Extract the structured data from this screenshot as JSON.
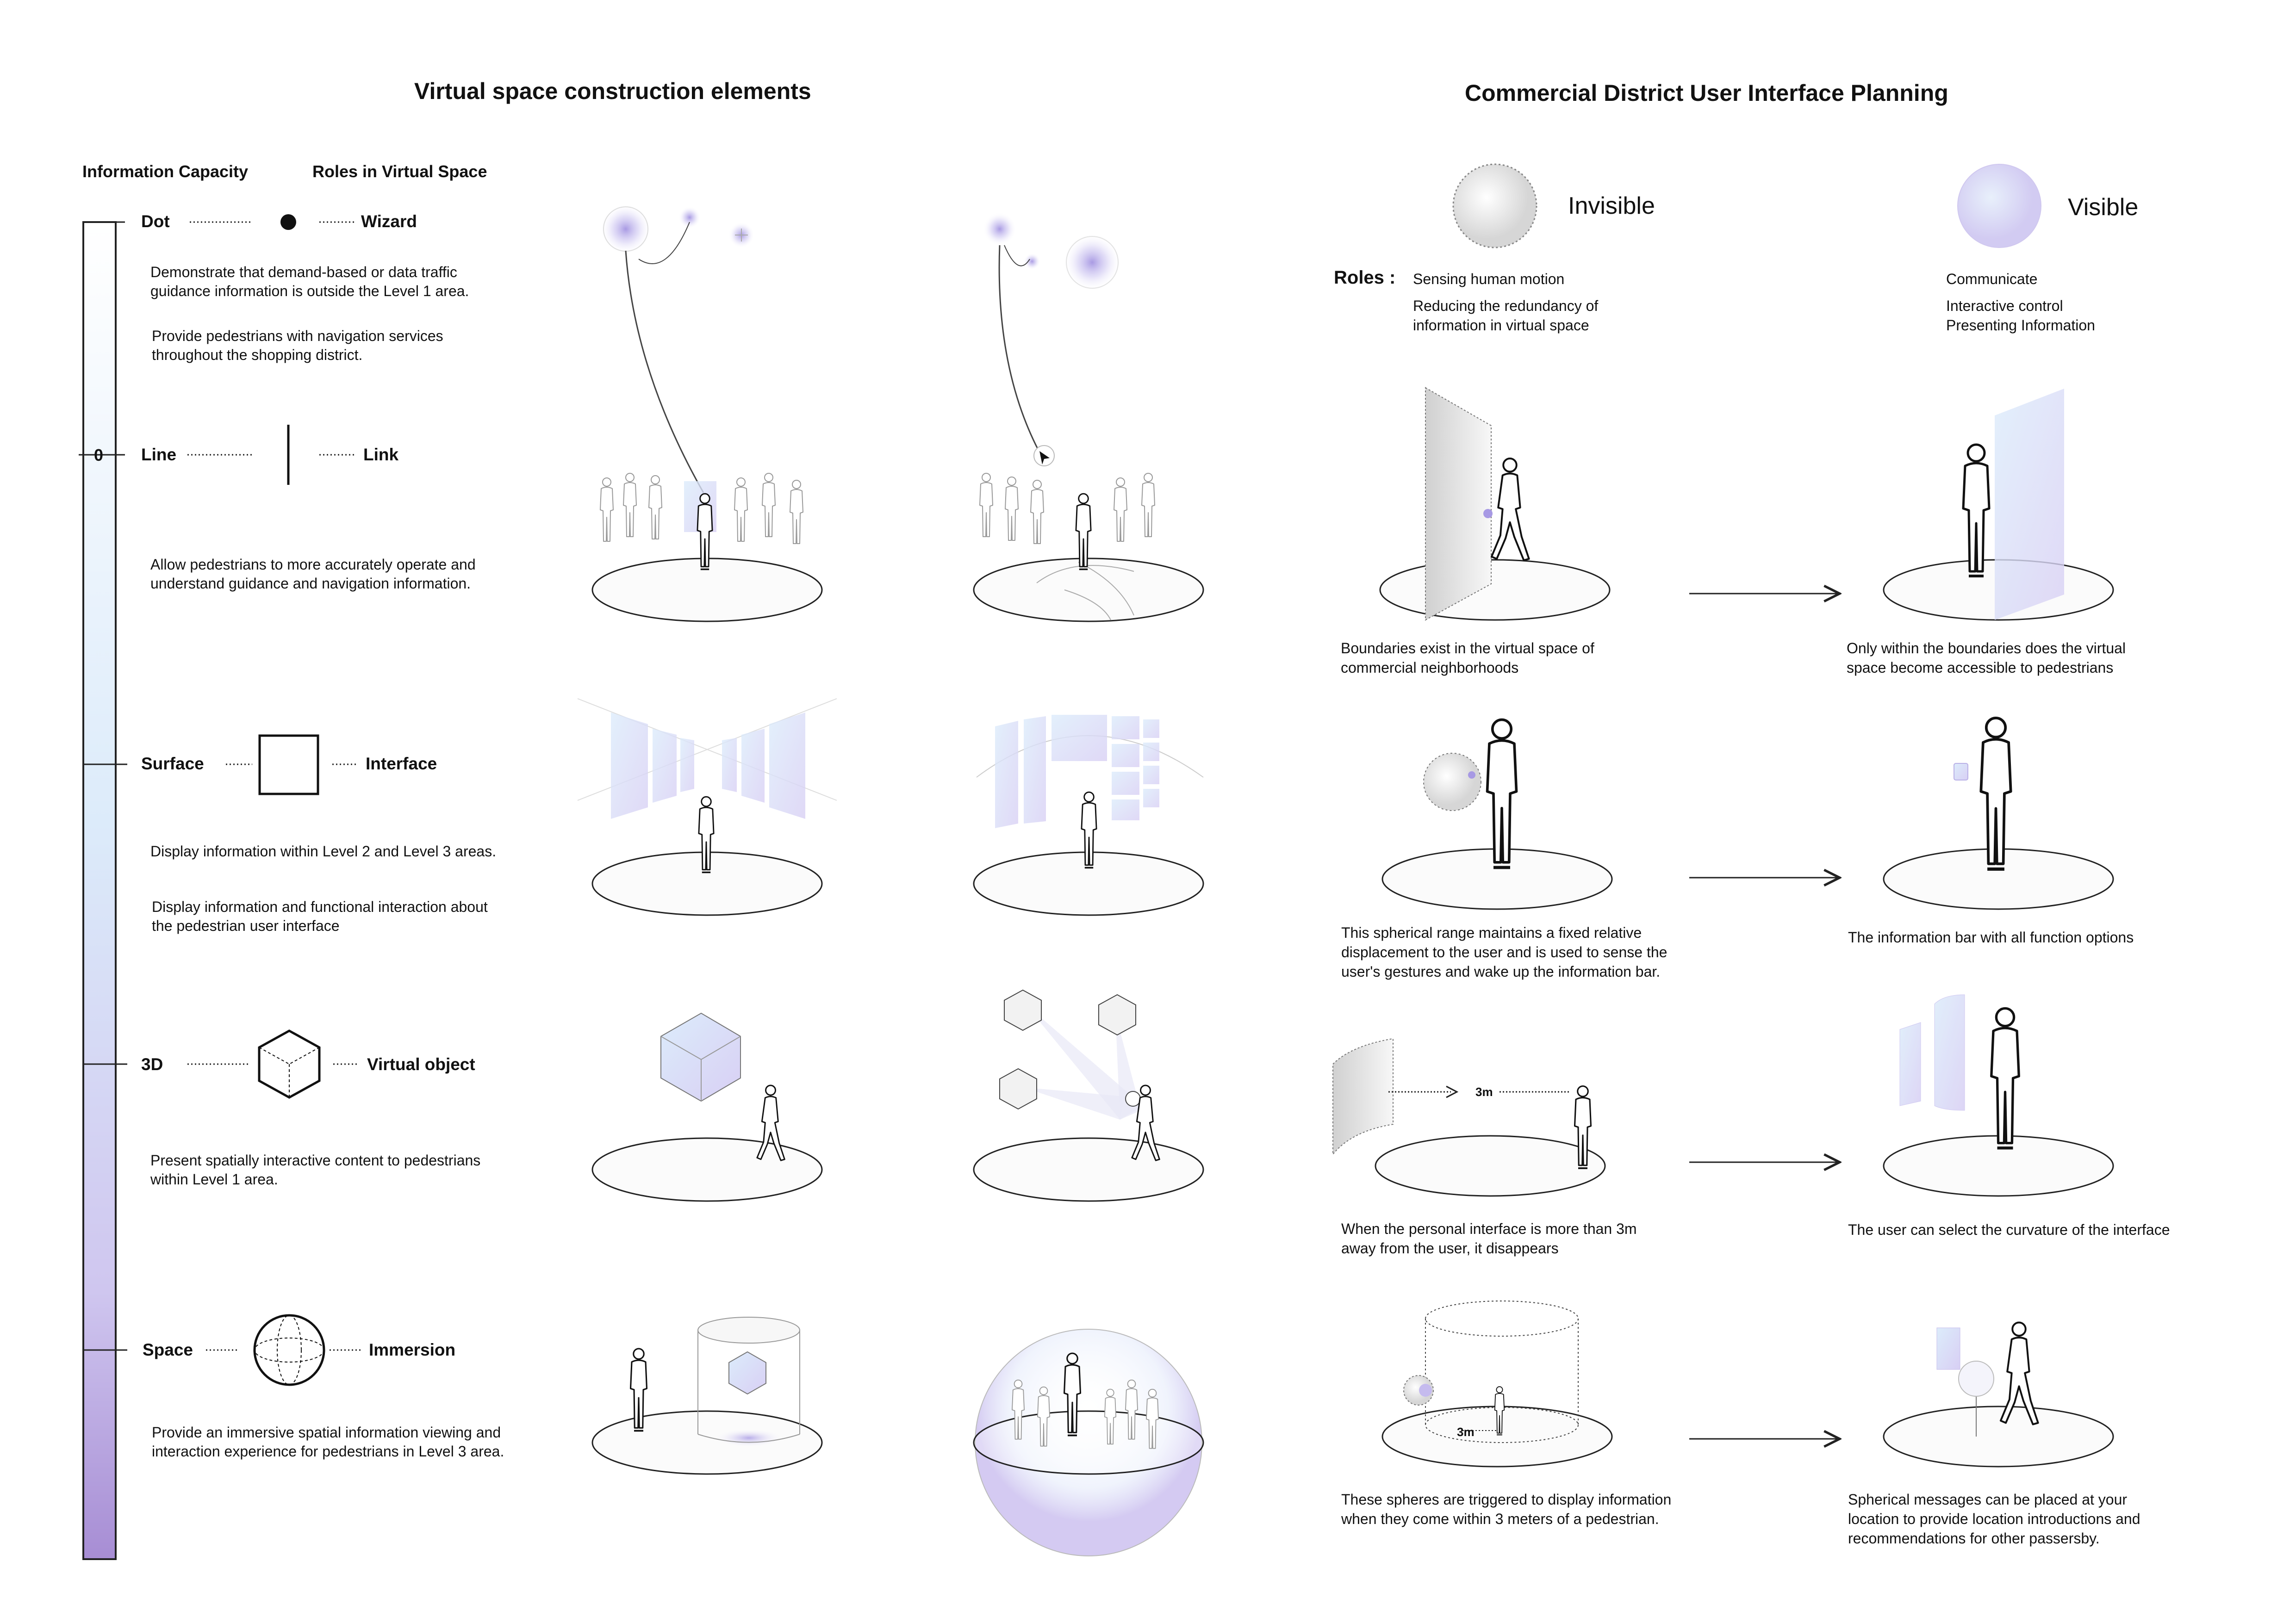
{
  "left": {
    "title": "Virtual space construction elements",
    "header_capacity": "Information Capacity",
    "header_roles": "Roles in Virtual Space",
    "scale_zero": "0",
    "elements": [
      {
        "label": "Dot",
        "role": "Wizard",
        "icon": "dot-icon"
      },
      {
        "label": "Line",
        "role": "Link",
        "icon": "line-icon"
      },
      {
        "label": "Surface",
        "role": "Interface",
        "icon": "square-icon"
      },
      {
        "label": "3D",
        "role": "Virtual object",
        "icon": "cube-icon"
      },
      {
        "label": "Space",
        "role": "Immersion",
        "icon": "sphere-icon"
      }
    ],
    "descriptions": [
      "Demonstrate that demand-based or data traffic\nguidance information is outside the Level 1 area.",
      "Provide pedestrians with navigation services\nthroughout the shopping district.",
      "Allow pedestrians to more accurately operate and\nunderstand guidance and navigation information.",
      "Display information within Level 2 and Level 3 areas.",
      "Display information and functional interaction about\nthe pedestrian user interface",
      "Present spatially interactive content to pedestrians\nwithin Level 1 area.",
      "Provide an immersive spatial information viewing and\ninteraction experience for pedestrians  in Level 3 area."
    ]
  },
  "right": {
    "title": "Commercial District User Interface Planning",
    "invisible_label": "Invisible",
    "visible_label": "Visible",
    "roles_label": "Roles",
    "invisible_roles": "Sensing human motion",
    "invisible_roles2": "Reducing the redundancy of\ninformation in virtual space",
    "visible_roles": "Communicate",
    "visible_roles2": "Interactive control\nPresenting Information",
    "distance_label_a": "3m",
    "distance_label_b": "3m",
    "captions_left": [
      "Boundaries exist in the virtual space of\ncommercial neighborhoods",
      "This spherical range maintains a fixed relative\ndisplacement to the user and is used to sense the\nuser's gestures and wake up the information bar.",
      "When the personal interface is more than 3m\naway from the user, it disappears",
      "These spheres are triggered to display information\nwhen they come within 3 meters of a pedestrian."
    ],
    "captions_right": [
      "Only within the boundaries does the virtual\nspace become accessible to pedestrians",
      "The information bar with all function options",
      "The user can select the curvature of the interface",
      "Spherical messages can be placed at your\nlocation to provide location introductions and\nrecommendations for other passersby."
    ]
  },
  "colors": {
    "accent": "#b3a1de",
    "accent_light": "#dcd4f6",
    "scale_top": "#ffffff",
    "scale_mid": "#dbe9f8",
    "scale_bottom": "#a98fd6",
    "ink": "#111111"
  }
}
